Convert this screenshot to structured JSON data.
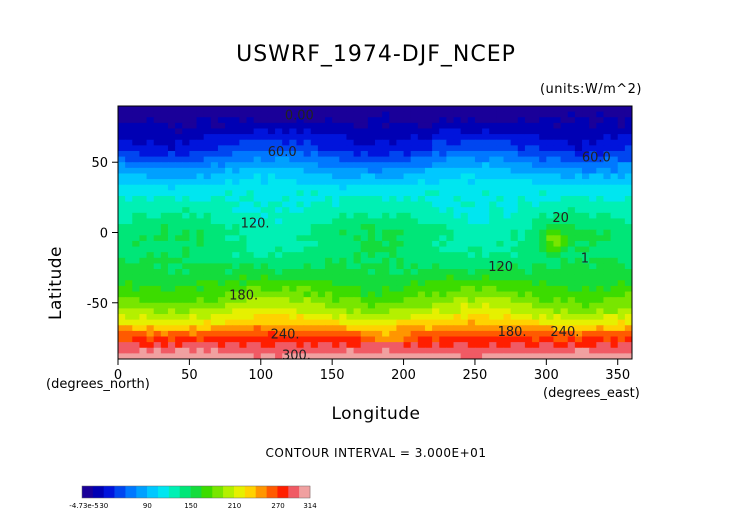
{
  "chart_data": {
    "type": "heatmap",
    "title": "USWRF_1974-DJF_NCEP",
    "units": "(units:W/m^2)",
    "xlabel": "Longitude",
    "ylabel": "Latitude",
    "x_unit_label": "(degrees_north)",
    "x_unit_label_right": "(degrees_east)",
    "xlim": [
      0,
      360
    ],
    "ylim": [
      -90,
      90
    ],
    "x_ticks": [
      0,
      50,
      100,
      150,
      200,
      250,
      300,
      350
    ],
    "y_ticks": [
      50,
      0,
      -50
    ],
    "contour_note": "CONTOUR INTERVAL = 3.000E+01",
    "contour_labels": [
      {
        "text": "0.00",
        "lon": 127,
        "lat": 83
      },
      {
        "text": "60.0",
        "lon": 115,
        "lat": 57
      },
      {
        "text": "60.0",
        "lon": 335,
        "lat": 53
      },
      {
        "text": "120.",
        "lon": 96,
        "lat": 6
      },
      {
        "text": "20",
        "lon": 310,
        "lat": 10
      },
      {
        "text": "120",
        "lon": 268,
        "lat": -25
      },
      {
        "text": "1",
        "lon": 327,
        "lat": -19
      },
      {
        "text": "180.",
        "lon": 88,
        "lat": -45
      },
      {
        "text": "240.",
        "lon": 117,
        "lat": -73
      },
      {
        "text": "180.",
        "lon": 276,
        "lat": -71
      },
      {
        "text": "240.",
        "lon": 313,
        "lat": -71
      },
      {
        "text": "300.",
        "lon": 125,
        "lat": -88
      }
    ],
    "zonal_profile": [
      {
        "lat": 90,
        "value": 0
      },
      {
        "lat": 75,
        "value": 20
      },
      {
        "lat": 60,
        "value": 45
      },
      {
        "lat": 50,
        "value": 70
      },
      {
        "lat": 40,
        "value": 95
      },
      {
        "lat": 30,
        "value": 115
      },
      {
        "lat": 15,
        "value": 125
      },
      {
        "lat": 0,
        "value": 140
      },
      {
        "lat": -15,
        "value": 140
      },
      {
        "lat": -30,
        "value": 155
      },
      {
        "lat": -45,
        "value": 180
      },
      {
        "lat": -55,
        "value": 200
      },
      {
        "lat": -65,
        "value": 230
      },
      {
        "lat": -72,
        "value": 260
      },
      {
        "lat": -80,
        "value": 285
      },
      {
        "lat": -88,
        "value": 305
      }
    ],
    "colorbar": {
      "labels": [
        "-4.73e-5",
        "30",
        "90",
        "150",
        "210",
        "270",
        "314"
      ],
      "label_values": [
        0,
        30,
        90,
        150,
        210,
        270,
        314
      ],
      "min": 0,
      "max": 314,
      "colors": [
        "#1a0099",
        "#0000b4",
        "#0014dc",
        "#0046f0",
        "#0078ff",
        "#00a0ff",
        "#00c8ff",
        "#00e6f0",
        "#00f0b4",
        "#00e678",
        "#14dc3c",
        "#3cdc00",
        "#78e600",
        "#b4f000",
        "#e6f000",
        "#ffd200",
        "#ff9600",
        "#ff5a00",
        "#ff1e00",
        "#f05a64",
        "#f0a0a0"
      ]
    },
    "grid": false
  }
}
